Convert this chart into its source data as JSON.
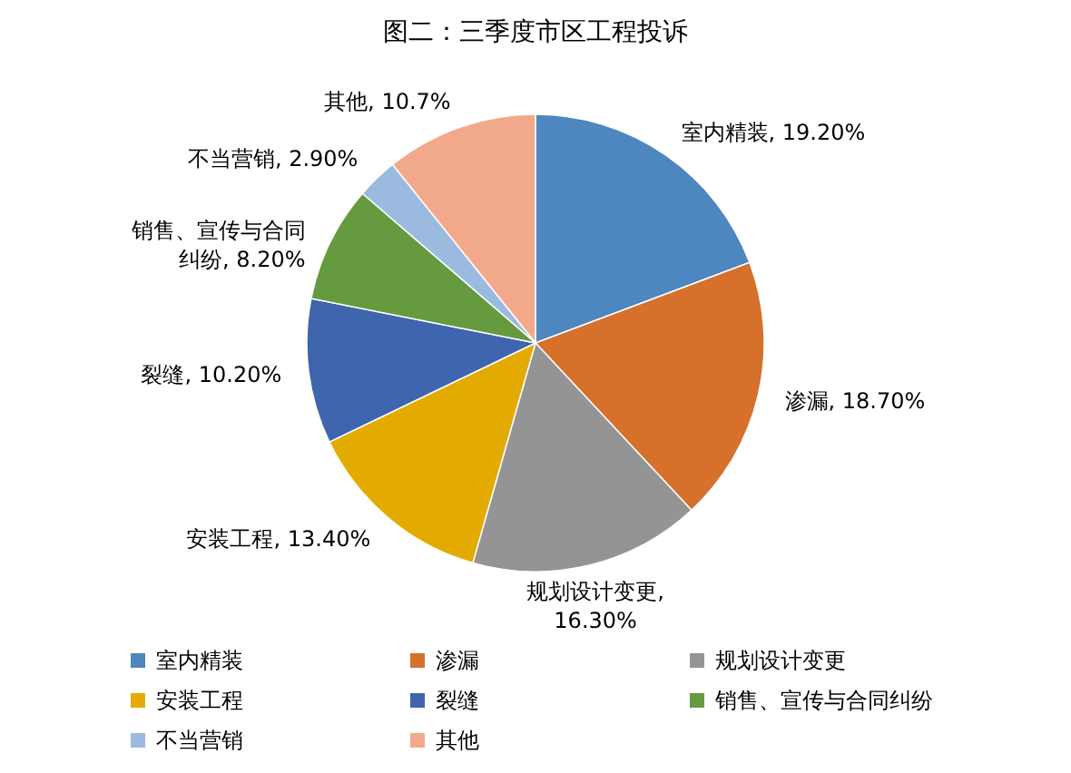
{
  "chart_data": {
    "type": "pie",
    "title": "图二：三季度市区工程投诉",
    "categories": [
      "室内精装",
      "渗漏",
      "规划设计变更",
      "安装工程",
      "裂缝",
      "销售、宣传与合同纠纷",
      "不当营销",
      "其他"
    ],
    "values": [
      19.2,
      18.7,
      16.3,
      13.4,
      10.2,
      8.2,
      2.9,
      10.7
    ],
    "value_labels": [
      "室内精装, 19.20%",
      "渗漏, 18.70%",
      "规划设计变更, 16.30%",
      "安装工程, 13.40%",
      "裂缝, 10.20%",
      "销售、宣传与合同纠纷, 8.20%",
      "不当营销, 2.90%",
      "其他, 10.7%"
    ],
    "colors": [
      "#4e86bf",
      "#d6702b",
      "#949494",
      "#e3ab00",
      "#3e65ae",
      "#659b3e",
      "#9bbae0",
      "#f2a98b"
    ],
    "legend": "bottom"
  }
}
